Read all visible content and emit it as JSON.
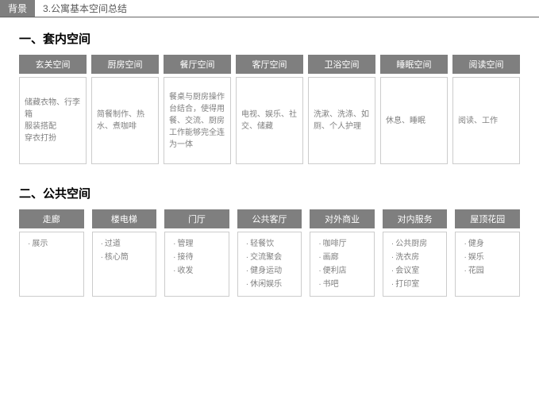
{
  "header": {
    "tag": "背景",
    "title": "3.公寓基本空间总结"
  },
  "section1": {
    "title": "一、套内空间",
    "columns": [
      {
        "head": "玄关空间",
        "body": "储藏衣物、行李箱\n服装搭配\n穿衣打扮"
      },
      {
        "head": "厨房空间",
        "body": "简餐制作、热水、煮咖啡"
      },
      {
        "head": "餐厅空间",
        "body": "餐桌与厨房操作台结合，使得用餐、交流、厨房工作能够完全连为一体"
      },
      {
        "head": "客厅空间",
        "body": "电视、娱乐、社交、储藏"
      },
      {
        "head": "卫浴空间",
        "body": "洗漱、洗涤、如厕、个人护理"
      },
      {
        "head": "睡眠空间",
        "body": "休息、睡眠"
      },
      {
        "head": "阅读空间",
        "body": "阅读、工作"
      }
    ]
  },
  "section2": {
    "title": "二、公共空间",
    "columns": [
      {
        "head": "走廊",
        "items": [
          "展示"
        ]
      },
      {
        "head": "楼电梯",
        "items": [
          "过道",
          "核心筒"
        ]
      },
      {
        "head": "门厅",
        "items": [
          "管理",
          "接待",
          "收发"
        ]
      },
      {
        "head": "公共客厅",
        "items": [
          "轻餐饮",
          "交流聚会",
          "健身运动",
          "休闲娱乐"
        ]
      },
      {
        "head": "对外商业",
        "items": [
          "咖啡厅",
          "画廊",
          "便利店",
          "书吧"
        ]
      },
      {
        "head": "对内服务",
        "items": [
          "公共厨房",
          "洗衣房",
          "会议室",
          "打印室"
        ]
      },
      {
        "head": "屋顶花园",
        "items": [
          "健身",
          "娱乐",
          "花园"
        ]
      }
    ]
  },
  "styling": {
    "header_bg": "#7f7f7f",
    "header_text": "#ffffff",
    "body_text": "#808080",
    "border_color": "#cccccc"
  }
}
